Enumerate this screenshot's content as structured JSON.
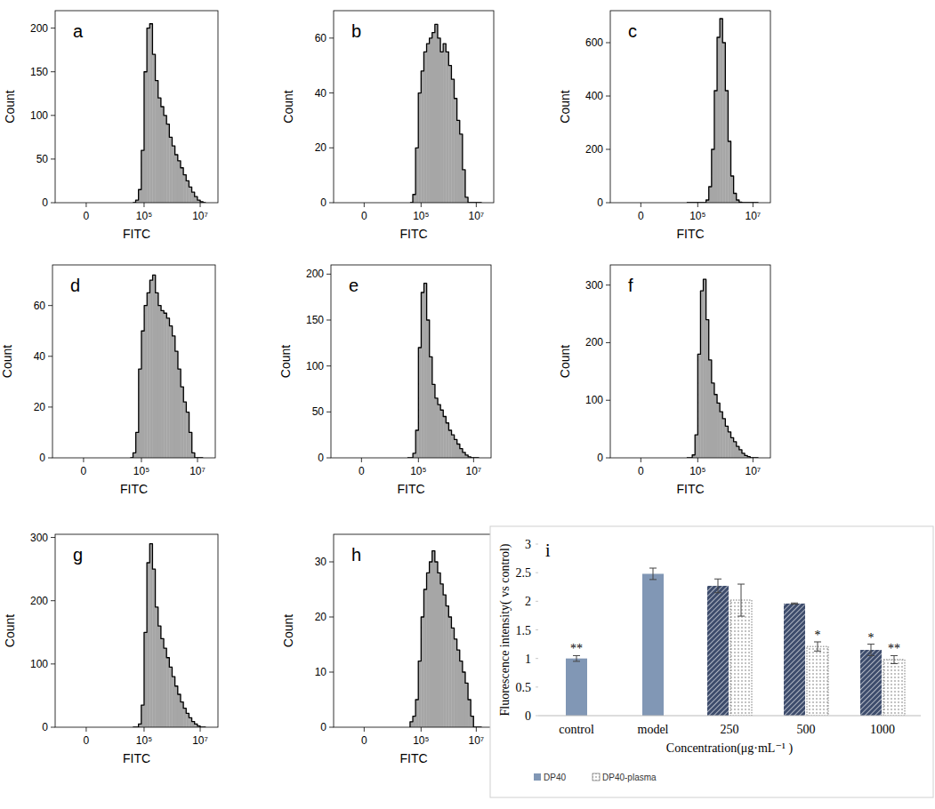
{
  "chart_data": [
    {
      "type": "histogram",
      "title": "a",
      "x_label": "FITC",
      "y_label": "Count",
      "color": "#a6a6a6",
      "xlim": [
        -11000,
        43000000
      ],
      "xticks": [
        0,
        {
          "value": 100000,
          "label": "10⁵"
        },
        {
          "value": 10000000,
          "label": "10⁷"
        }
      ],
      "ylim": [
        0,
        220
      ],
      "yticks": [
        0,
        50,
        100,
        150,
        200
      ],
      "bins": [
        39800,
        50100,
        63100,
        79400,
        100000,
        125900,
        158500,
        199500,
        251200,
        316200,
        398100,
        501200,
        631000,
        794300,
        1000000,
        1259000,
        1585000,
        1995000,
        2512000,
        3162000,
        3981000,
        5012000,
        6310000,
        7943000,
        10000000,
        12590000,
        15850000
      ],
      "values": [
        0,
        3,
        15,
        60,
        150,
        200,
        205,
        170,
        140,
        120,
        110,
        100,
        90,
        75,
        65,
        55,
        48,
        40,
        32,
        25,
        18,
        12,
        7,
        3,
        1,
        0
      ]
    },
    {
      "type": "histogram",
      "title": "b",
      "x_label": "FITC",
      "y_label": "Count",
      "color": "#a6a6a6",
      "xlim": [
        -11000,
        43000000
      ],
      "xticks": [
        0,
        {
          "value": 100000,
          "label": "10⁵"
        },
        {
          "value": 10000000,
          "label": "10⁷"
        }
      ],
      "ylim": [
        0,
        70
      ],
      "yticks": [
        0,
        20,
        40,
        60
      ],
      "bins": [
        39800,
        50100,
        63100,
        79400,
        100000,
        125900,
        158500,
        199500,
        251200,
        316200,
        398100,
        501200,
        631000,
        794300,
        1000000,
        1259000,
        1585000,
        1995000,
        2512000,
        3162000,
        3981000,
        5012000,
        6310000,
        7943000,
        10000000,
        12590000,
        15850000
      ],
      "values": [
        0,
        3,
        20,
        40,
        48,
        55,
        58,
        60,
        62,
        65,
        60,
        55,
        58,
        55,
        50,
        45,
        38,
        30,
        25,
        12,
        2,
        0,
        0,
        0,
        0,
        0
      ]
    },
    {
      "type": "histogram",
      "title": "c",
      "x_label": "FITC",
      "y_label": "Count",
      "color": "#a6a6a6",
      "xlim": [
        -11000,
        43000000
      ],
      "xticks": [
        0,
        {
          "value": 100000,
          "label": "10⁵"
        },
        {
          "value": 10000000,
          "label": "10⁷"
        }
      ],
      "ylim": [
        0,
        720
      ],
      "yticks": [
        0,
        200,
        400,
        600
      ],
      "bins": [
        39800,
        50100,
        63100,
        79400,
        100000,
        125900,
        158500,
        199500,
        251200,
        316200,
        398100,
        501200,
        631000,
        794300,
        1000000,
        1259000,
        1585000,
        1995000,
        2512000,
        3162000,
        3981000,
        5012000,
        6310000,
        7943000,
        10000000,
        12590000,
        15850000
      ],
      "values": [
        0,
        0,
        0,
        0,
        0,
        0,
        0,
        10,
        60,
        200,
        420,
        620,
        690,
        600,
        420,
        230,
        100,
        35,
        10,
        2,
        0,
        0,
        0,
        0,
        0,
        0
      ]
    },
    {
      "type": "histogram",
      "title": "d",
      "x_label": "FITC",
      "y_label": "Count",
      "color": "#a6a6a6",
      "xlim": [
        -11000,
        43000000
      ],
      "xticks": [
        0,
        {
          "value": 100000,
          "label": "10⁵"
        },
        {
          "value": 10000000,
          "label": "10⁷"
        }
      ],
      "ylim": [
        0,
        76
      ],
      "yticks": [
        0,
        20,
        40,
        60
      ],
      "bins": [
        39800,
        50100,
        63100,
        79400,
        100000,
        125900,
        158500,
        199500,
        251200,
        316200,
        398100,
        501200,
        631000,
        794300,
        1000000,
        1259000,
        1585000,
        1995000,
        2512000,
        3162000,
        3981000,
        5012000,
        6310000,
        7943000,
        10000000,
        12590000,
        15850000
      ],
      "values": [
        0,
        2,
        10,
        35,
        50,
        60,
        65,
        70,
        72,
        65,
        60,
        58,
        57,
        55,
        52,
        48,
        42,
        35,
        28,
        22,
        18,
        10,
        2,
        0,
        0,
        0
      ]
    },
    {
      "type": "histogram",
      "title": "e",
      "x_label": "FITC",
      "y_label": "Count",
      "color": "#a6a6a6",
      "xlim": [
        -11000,
        43000000
      ],
      "xticks": [
        0,
        {
          "value": 100000,
          "label": "10⁵"
        },
        {
          "value": 10000000,
          "label": "10⁷"
        }
      ],
      "ylim": [
        0,
        210
      ],
      "yticks": [
        0,
        50,
        100,
        150,
        200
      ],
      "bins": [
        39800,
        50100,
        63100,
        79400,
        100000,
        125900,
        158500,
        199500,
        251200,
        316200,
        398100,
        501200,
        631000,
        794300,
        1000000,
        1259000,
        1585000,
        1995000,
        2512000,
        3162000,
        3981000,
        5012000,
        6310000,
        7943000,
        10000000,
        12590000,
        15850000
      ],
      "values": [
        0,
        0,
        5,
        30,
        120,
        180,
        190,
        150,
        110,
        80,
        65,
        58,
        52,
        45,
        38,
        30,
        25,
        20,
        15,
        10,
        6,
        3,
        1,
        0,
        0,
        0
      ]
    },
    {
      "type": "histogram",
      "title": "f",
      "x_label": "FITC",
      "y_label": "Count",
      "color": "#a6a6a6",
      "xlim": [
        -11000,
        43000000
      ],
      "xticks": [
        0,
        {
          "value": 100000,
          "label": "10⁵"
        },
        {
          "value": 10000000,
          "label": "10⁷"
        }
      ],
      "ylim": [
        0,
        335
      ],
      "yticks": [
        0,
        100,
        200,
        300
      ],
      "bins": [
        39800,
        50100,
        63100,
        79400,
        100000,
        125900,
        158500,
        199500,
        251200,
        316200,
        398100,
        501200,
        631000,
        794300,
        1000000,
        1259000,
        1585000,
        1995000,
        2512000,
        3162000,
        3981000,
        5012000,
        6310000,
        7943000,
        10000000,
        12590000,
        15850000
      ],
      "values": [
        0,
        0,
        5,
        40,
        180,
        290,
        310,
        240,
        170,
        130,
        110,
        95,
        80,
        68,
        55,
        45,
        35,
        28,
        20,
        14,
        8,
        4,
        2,
        0,
        0,
        0
      ]
    },
    {
      "type": "histogram",
      "title": "g",
      "x_label": "FITC",
      "y_label": "Count",
      "color": "#a6a6a6",
      "xlim": [
        -11000,
        43000000
      ],
      "xticks": [
        0,
        {
          "value": 100000,
          "label": "10⁵"
        },
        {
          "value": 10000000,
          "label": "10⁷"
        }
      ],
      "ylim": [
        0,
        305
      ],
      "yticks": [
        0,
        100,
        200,
        300
      ],
      "bins": [
        39800,
        50100,
        63100,
        79400,
        100000,
        125900,
        158500,
        199500,
        251200,
        316200,
        398100,
        501200,
        631000,
        794300,
        1000000,
        1259000,
        1585000,
        1995000,
        2512000,
        3162000,
        3981000,
        5012000,
        6310000,
        7943000,
        10000000,
        12590000,
        15850000
      ],
      "values": [
        0,
        0,
        5,
        35,
        150,
        260,
        290,
        250,
        190,
        160,
        140,
        125,
        110,
        95,
        80,
        65,
        52,
        40,
        30,
        22,
        15,
        9,
        5,
        2,
        0,
        0
      ]
    },
    {
      "type": "histogram",
      "title": "h",
      "x_label": "FITC",
      "y_label": "Count",
      "color": "#a6a6a6",
      "xlim": [
        -11000,
        43000000
      ],
      "xticks": [
        0,
        {
          "value": 100000,
          "label": "10⁵"
        },
        {
          "value": 10000000,
          "label": "10⁷"
        }
      ],
      "ylim": [
        0,
        35
      ],
      "yticks": [
        0,
        10,
        20,
        30
      ],
      "bins": [
        39800,
        50100,
        63100,
        79400,
        100000,
        125900,
        158500,
        199500,
        251200,
        316200,
        398100,
        501200,
        631000,
        794300,
        1000000,
        1259000,
        1585000,
        1995000,
        2512000,
        3162000,
        3981000,
        5012000,
        6310000,
        7943000,
        10000000,
        12590000,
        15850000
      ],
      "values": [
        1,
        2,
        5,
        12,
        20,
        25,
        28,
        30,
        32,
        30,
        28,
        26,
        24,
        22,
        20,
        18,
        16,
        14,
        12,
        10,
        8,
        5,
        2,
        0,
        0,
        0
      ]
    },
    {
      "type": "bar",
      "title": "i",
      "x_label": "Concentration(μg·mL⁻¹ )",
      "y_label": "Fluorescence intensity( vs control)",
      "categories": [
        "control",
        "model",
        "250",
        "500",
        "1000"
      ],
      "ylim": [
        0,
        3
      ],
      "yticks": [
        0,
        0.5,
        1,
        1.5,
        2,
        2.5,
        3
      ],
      "legend": "bottom",
      "series": [
        {
          "name": "DP40",
          "color": "#8197b5",
          "colors": [
            "#8197b5",
            "#8197b5",
            "#3d4c6c",
            "#3d4c6c",
            "#3d4c6c"
          ],
          "values": [
            1.0,
            2.48,
            2.27,
            1.96,
            1.15
          ],
          "errors": [
            0.05,
            0.1,
            0.12,
            0.01,
            0.1
          ],
          "significance": [
            "**",
            null,
            null,
            null,
            "*"
          ]
        },
        {
          "name": "DP40-plasma",
          "color": "#5a5a5a",
          "values": [
            null,
            null,
            2.02,
            1.21,
            0.98
          ],
          "errors": [
            null,
            null,
            0.28,
            0.08,
            0.07
          ],
          "significance": [
            null,
            null,
            null,
            "*",
            "**"
          ]
        }
      ]
    }
  ]
}
